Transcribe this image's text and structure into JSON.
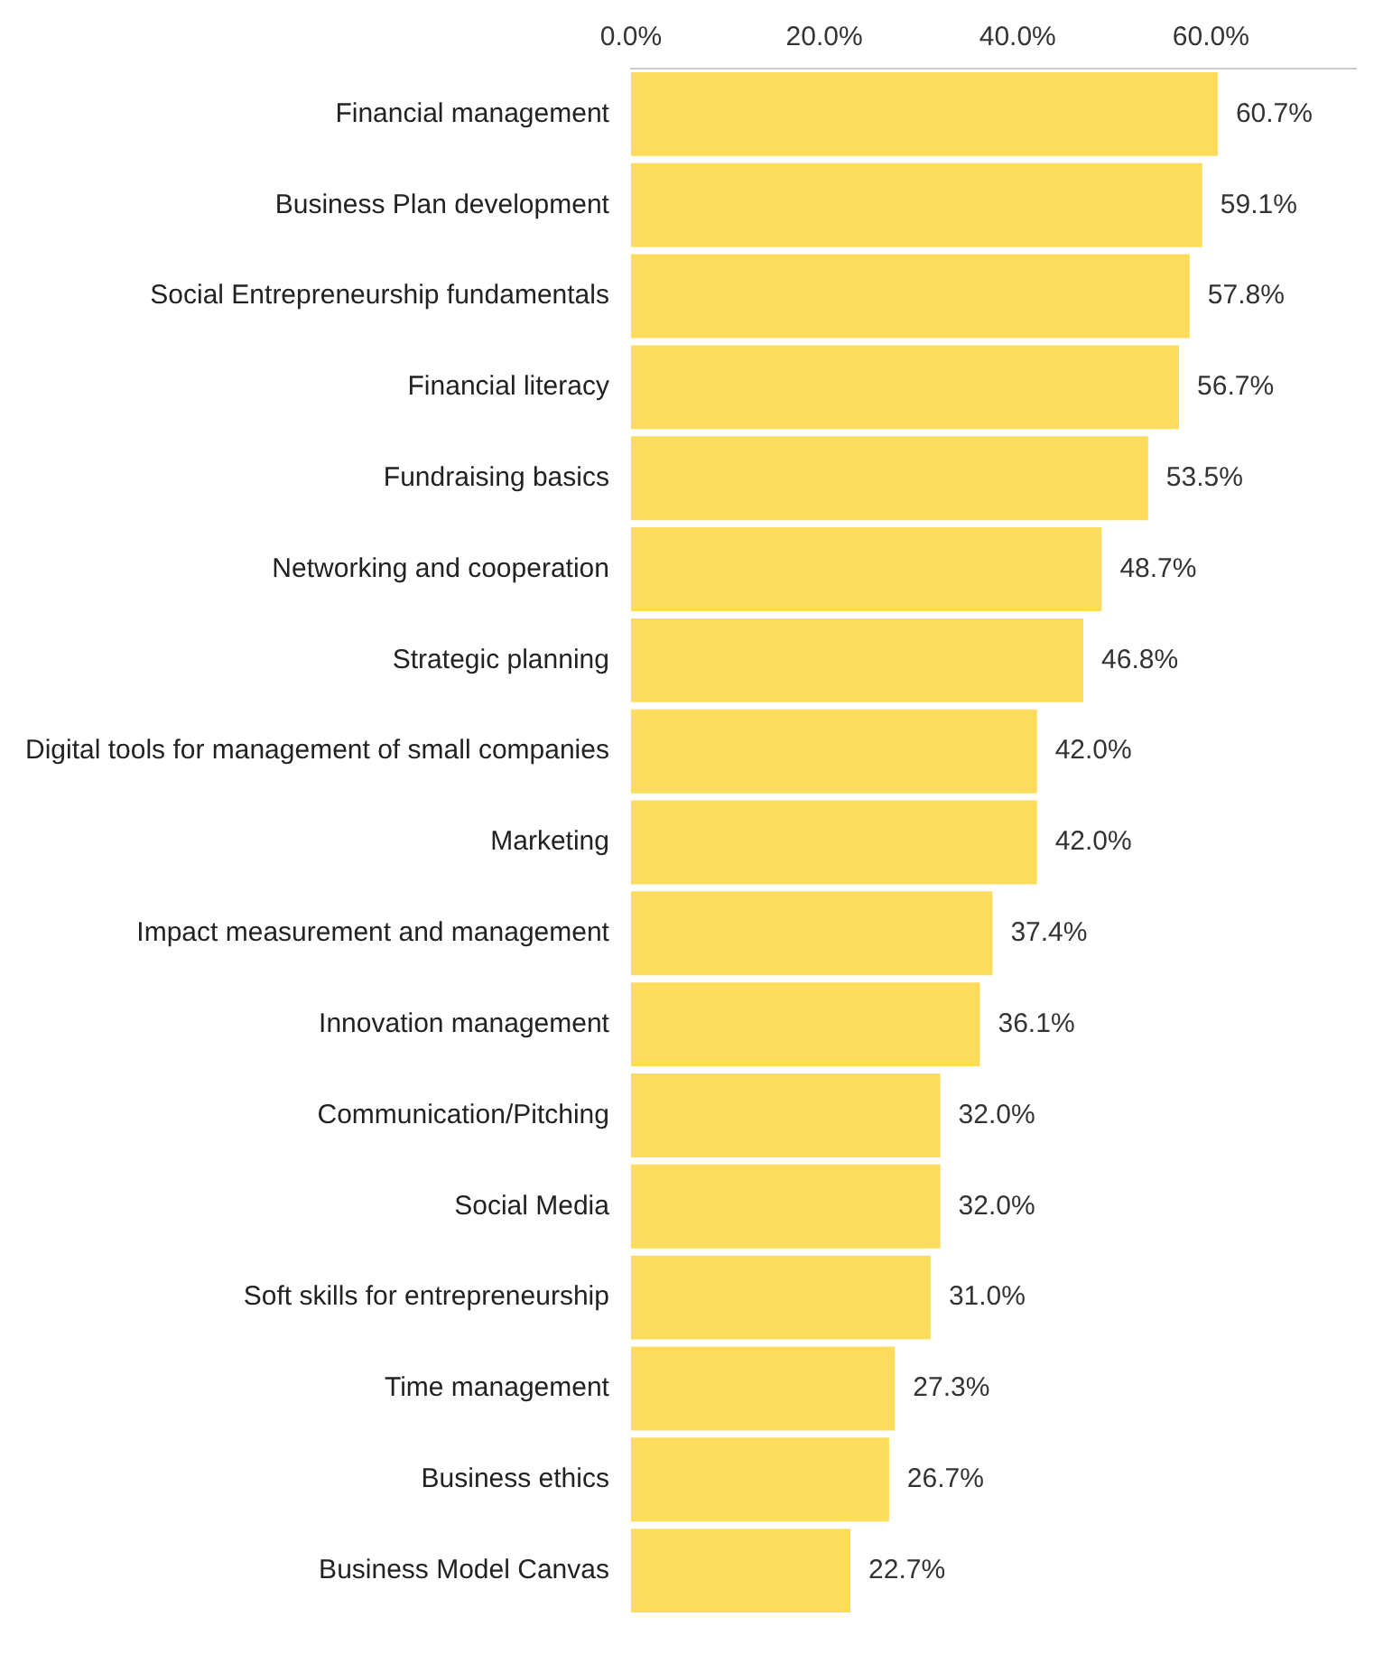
{
  "chart_data": {
    "type": "bar",
    "orientation": "horizontal",
    "categories": [
      "Financial management",
      "Business Plan development",
      "Social Entrepreneurship fundamentals",
      "Financial literacy",
      "Fundraising basics",
      "Networking and cooperation",
      "Strategic planning",
      "Digital tools for management of small companies",
      "Marketing",
      "Impact measurement and management",
      "Innovation management",
      "Communication/Pitching",
      "Social Media",
      "Soft skills for entrepreneurship",
      "Time management",
      "Business ethics",
      "Business Model Canvas"
    ],
    "values": [
      60.7,
      59.1,
      57.8,
      56.7,
      53.5,
      48.7,
      46.8,
      42.0,
      42.0,
      37.4,
      36.1,
      32.0,
      32.0,
      31.0,
      27.3,
      26.7,
      22.7
    ],
    "value_labels": [
      "60.7%",
      "59.1%",
      "57.8%",
      "56.7%",
      "53.5%",
      "48.7%",
      "46.8%",
      "42.0%",
      "42.0%",
      "37.4%",
      "36.1%",
      "32.0%",
      "32.0%",
      "31.0%",
      "27.3%",
      "26.7%",
      "22.7%"
    ],
    "color": "#fddc5c",
    "xlim": [
      0,
      75
    ],
    "xticks": [
      {
        "value": 0,
        "label": "0.0%"
      },
      {
        "value": 20,
        "label": "20.0%"
      },
      {
        "value": 40,
        "label": "40.0%"
      },
      {
        "value": 60,
        "label": "60.0%"
      }
    ],
    "grid": false,
    "legend": false
  }
}
